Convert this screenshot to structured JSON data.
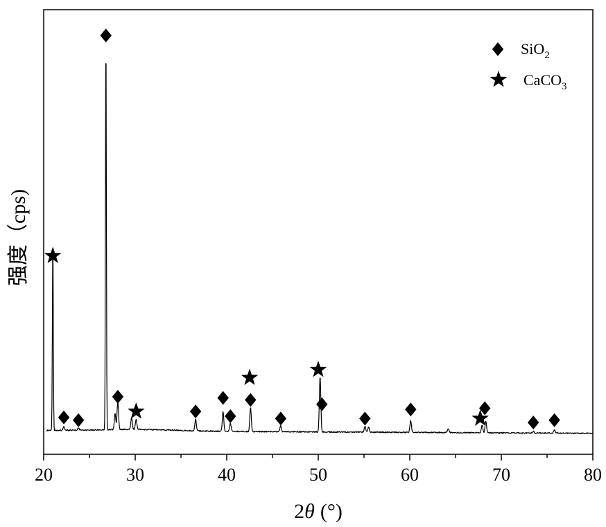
{
  "chart_data": {
    "type": "line",
    "title": "",
    "xlabel_prefix": "2",
    "xlabel_symbol": "θ",
    "xlabel_unit": "(°)",
    "ylabel": "强度（cps)",
    "xlim": [
      20,
      80
    ],
    "ylim": [
      -600,
      10600
    ],
    "xticks": [
      "20",
      "30",
      "40",
      "50",
      "60",
      "70",
      "80"
    ],
    "grid": false,
    "legend_position": "top-right",
    "legend": [
      {
        "marker": "diamond",
        "label": "SiO",
        "sub": "2"
      },
      {
        "marker": "star",
        "label": "CaCO",
        "sub": "3"
      }
    ],
    "baseline": 0,
    "peaks": [
      {
        "x": 21.0,
        "y": 4700
      },
      {
        "x": 22.2,
        "y": 100
      },
      {
        "x": 23.8,
        "y": 60
      },
      {
        "x": 26.8,
        "y": 10000
      },
      {
        "x": 27.8,
        "y": 400
      },
      {
        "x": 28.1,
        "y": 700
      },
      {
        "x": 29.6,
        "y": 300
      },
      {
        "x": 30.1,
        "y": 250
      },
      {
        "x": 36.6,
        "y": 300
      },
      {
        "x": 39.6,
        "y": 500
      },
      {
        "x": 40.4,
        "y": 200
      },
      {
        "x": 42.6,
        "y": 600
      },
      {
        "x": 45.9,
        "y": 150
      },
      {
        "x": 50.2,
        "y": 1400
      },
      {
        "x": 55.1,
        "y": 150
      },
      {
        "x": 55.5,
        "y": 130
      },
      {
        "x": 60.1,
        "y": 300
      },
      {
        "x": 64.2,
        "y": 100
      },
      {
        "x": 67.9,
        "y": 200
      },
      {
        "x": 68.3,
        "y": 300
      },
      {
        "x": 73.5,
        "y": 50
      },
      {
        "x": 75.8,
        "y": 80
      }
    ],
    "markers": [
      {
        "type": "star",
        "x": 21.0,
        "y": 4400
      },
      {
        "type": "diamond",
        "x": 22.2,
        "y": 330
      },
      {
        "type": "diamond",
        "x": 23.8,
        "y": 260
      },
      {
        "type": "diamond",
        "x": 26.8,
        "y": 9950
      },
      {
        "type": "diamond",
        "x": 28.1,
        "y": 850
      },
      {
        "type": "star",
        "x": 30.1,
        "y": 480
      },
      {
        "type": "diamond",
        "x": 36.6,
        "y": 480
      },
      {
        "type": "diamond",
        "x": 39.6,
        "y": 820
      },
      {
        "type": "diamond",
        "x": 40.4,
        "y": 360
      },
      {
        "type": "star",
        "x": 42.5,
        "y": 1330
      },
      {
        "type": "diamond",
        "x": 42.6,
        "y": 770
      },
      {
        "type": "diamond",
        "x": 45.9,
        "y": 300
      },
      {
        "type": "star",
        "x": 50.0,
        "y": 1530
      },
      {
        "type": "diamond",
        "x": 50.4,
        "y": 660
      },
      {
        "type": "diamond",
        "x": 55.1,
        "y": 300
      },
      {
        "type": "diamond",
        "x": 60.1,
        "y": 530
      },
      {
        "type": "star",
        "x": 67.7,
        "y": 300
      },
      {
        "type": "diamond",
        "x": 68.2,
        "y": 560
      },
      {
        "type": "diamond",
        "x": 73.5,
        "y": 200
      },
      {
        "type": "diamond",
        "x": 75.8,
        "y": 260
      }
    ]
  }
}
